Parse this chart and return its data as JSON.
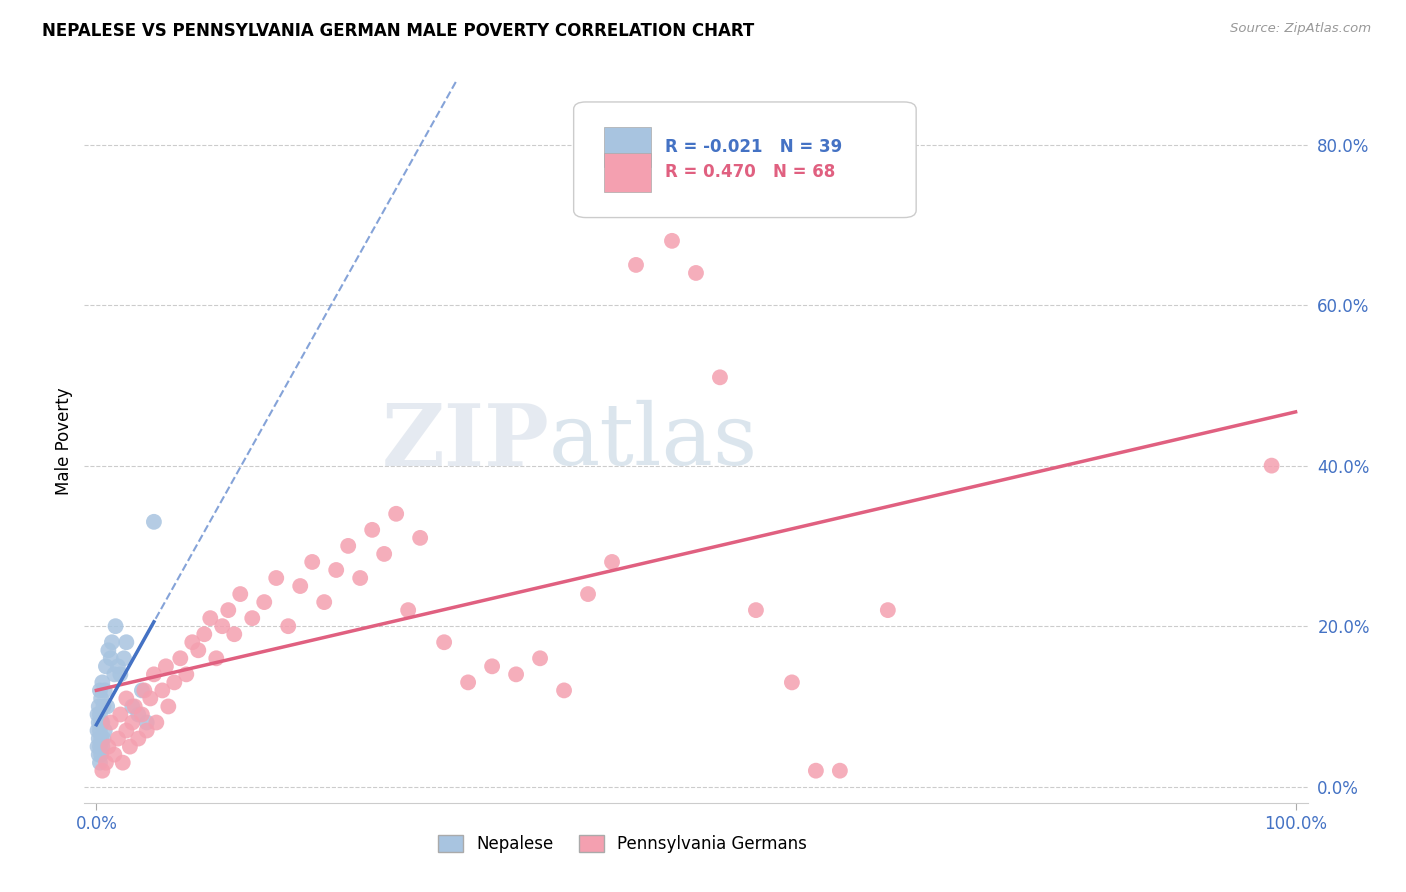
{
  "title": "NEPALESE VS PENNSYLVANIA GERMAN MALE POVERTY CORRELATION CHART",
  "source": "Source: ZipAtlas.com",
  "ylabel": "Male Poverty",
  "watermark_zip": "ZIP",
  "watermark_atlas": "atlas",
  "nepalese_R": -0.021,
  "nepalese_N": 39,
  "penn_german_R": 0.47,
  "penn_german_N": 68,
  "nepalese_color": "#a8c4e0",
  "penn_german_color": "#f4a0b0",
  "nepalese_line_color": "#4472c4",
  "penn_german_line_color": "#e06080",
  "legend_nepalese_text_color": "#4472c4",
  "legend_penn_text_color": "#e06080",
  "axis_tick_color": "#4472c4",
  "grid_color": "#cccccc",
  "bg_color": "#ffffff",
  "nep_x": [
    0.001,
    0.001,
    0.001,
    0.002,
    0.002,
    0.002,
    0.002,
    0.003,
    0.003,
    0.003,
    0.003,
    0.003,
    0.004,
    0.004,
    0.004,
    0.004,
    0.005,
    0.005,
    0.005,
    0.006,
    0.006,
    0.007,
    0.007,
    0.008,
    0.009,
    0.01,
    0.012,
    0.013,
    0.015,
    0.016,
    0.018,
    0.02,
    0.023,
    0.025,
    0.03,
    0.035,
    0.038,
    0.042,
    0.048
  ],
  "nep_y": [
    0.05,
    0.07,
    0.09,
    0.04,
    0.06,
    0.08,
    0.1,
    0.03,
    0.05,
    0.07,
    0.09,
    0.12,
    0.04,
    0.06,
    0.08,
    0.11,
    0.05,
    0.08,
    0.13,
    0.06,
    0.1,
    0.07,
    0.12,
    0.15,
    0.1,
    0.17,
    0.16,
    0.18,
    0.14,
    0.2,
    0.15,
    0.14,
    0.16,
    0.18,
    0.1,
    0.09,
    0.12,
    0.08,
    0.33
  ],
  "png_x": [
    0.005,
    0.008,
    0.01,
    0.012,
    0.015,
    0.018,
    0.02,
    0.022,
    0.025,
    0.025,
    0.028,
    0.03,
    0.032,
    0.035,
    0.038,
    0.04,
    0.042,
    0.045,
    0.048,
    0.05,
    0.055,
    0.058,
    0.06,
    0.065,
    0.07,
    0.075,
    0.08,
    0.085,
    0.09,
    0.095,
    0.1,
    0.105,
    0.11,
    0.115,
    0.12,
    0.13,
    0.14,
    0.15,
    0.16,
    0.17,
    0.18,
    0.19,
    0.2,
    0.21,
    0.22,
    0.23,
    0.24,
    0.25,
    0.26,
    0.27,
    0.29,
    0.31,
    0.33,
    0.35,
    0.37,
    0.39,
    0.41,
    0.43,
    0.45,
    0.48,
    0.5,
    0.52,
    0.55,
    0.58,
    0.6,
    0.62,
    0.66,
    0.98
  ],
  "png_y": [
    0.02,
    0.03,
    0.05,
    0.08,
    0.04,
    0.06,
    0.09,
    0.03,
    0.07,
    0.11,
    0.05,
    0.08,
    0.1,
    0.06,
    0.09,
    0.12,
    0.07,
    0.11,
    0.14,
    0.08,
    0.12,
    0.15,
    0.1,
    0.13,
    0.16,
    0.14,
    0.18,
    0.17,
    0.19,
    0.21,
    0.16,
    0.2,
    0.22,
    0.19,
    0.24,
    0.21,
    0.23,
    0.26,
    0.2,
    0.25,
    0.28,
    0.23,
    0.27,
    0.3,
    0.26,
    0.32,
    0.29,
    0.34,
    0.22,
    0.31,
    0.18,
    0.13,
    0.15,
    0.14,
    0.16,
    0.12,
    0.24,
    0.28,
    0.65,
    0.68,
    0.64,
    0.51,
    0.22,
    0.13,
    0.02,
    0.02,
    0.22,
    0.4
  ],
  "xlim": [
    0.0,
    1.0
  ],
  "ylim": [
    0.0,
    0.88
  ],
  "ytick_vals": [
    0.0,
    0.2,
    0.4,
    0.6,
    0.8
  ],
  "ytick_labels": [
    "0.0%",
    "20.0%",
    "40.0%",
    "60.0%",
    "80.0%"
  ],
  "xtick_vals": [
    0.0,
    1.0
  ],
  "xtick_labels": [
    "0.0%",
    "100.0%"
  ]
}
